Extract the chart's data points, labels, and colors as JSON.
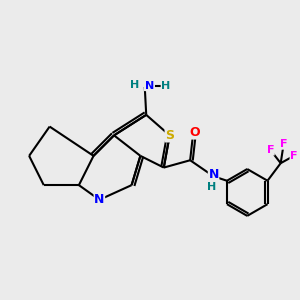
{
  "background_color": "#EBEBEB",
  "bond_color": "#000000",
  "atom_colors": {
    "N": "#0000FF",
    "S": "#CCAA00",
    "O": "#FF0000",
    "F": "#FF00FF",
    "H": "#008080",
    "C": "#000000"
  },
  "figsize": [
    3.0,
    3.0
  ],
  "dpi": 100,
  "lw": 1.5,
  "fontsize": 8
}
